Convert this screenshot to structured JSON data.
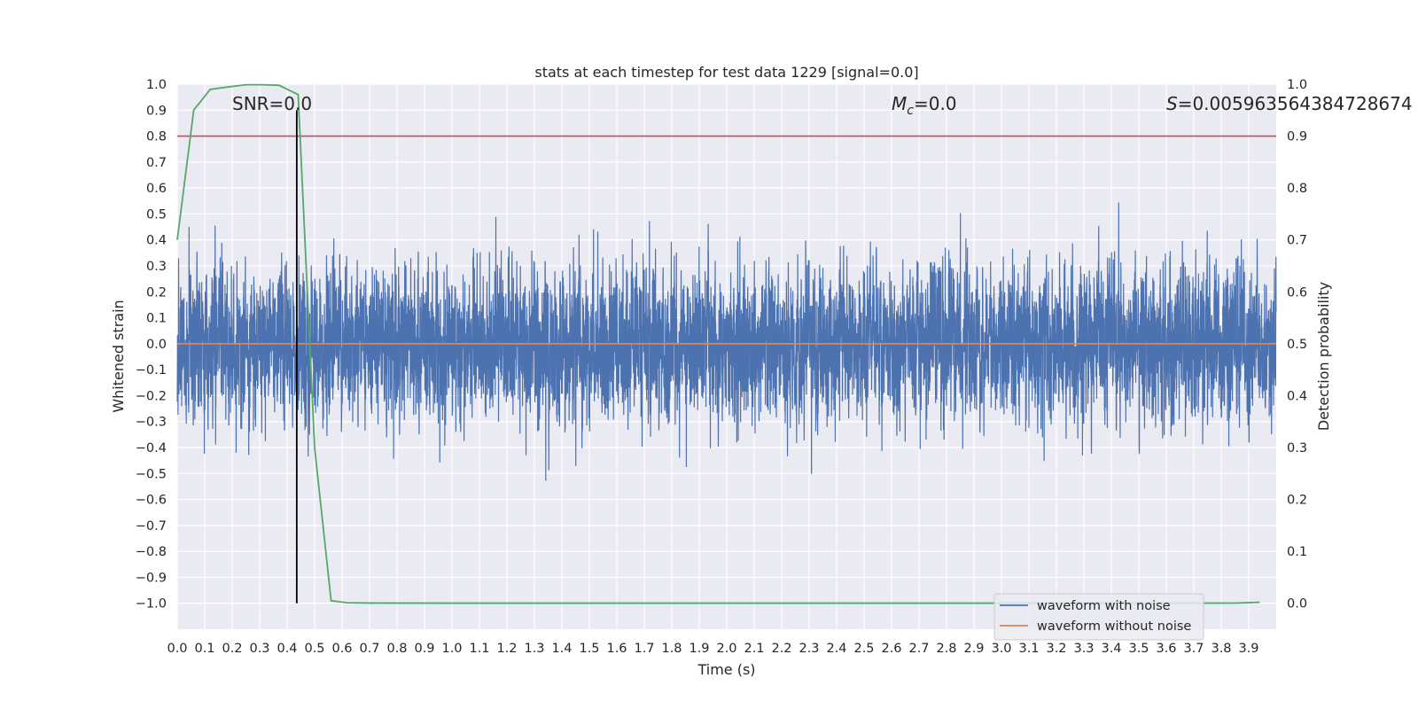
{
  "chart_data": {
    "type": "line",
    "title": "stats at each timestep for test data 1229 [signal=0.0]",
    "xlabel": "Time (s)",
    "ylabel": "Whitened strain",
    "y2label": "Detection probability",
    "xlim": [
      0.0,
      4.0
    ],
    "ylim": [
      -1.1,
      1.0
    ],
    "y2lim": [
      -0.05,
      1.0
    ],
    "xticks": [
      "0.0",
      "0.1",
      "0.2",
      "0.3",
      "0.4",
      "0.5",
      "0.6",
      "0.7",
      "0.8",
      "0.9",
      "1.0",
      "1.1",
      "1.2",
      "1.3",
      "1.4",
      "1.5",
      "1.6",
      "1.7",
      "1.8",
      "1.9",
      "2.0",
      "2.1",
      "2.2",
      "2.3",
      "2.4",
      "2.5",
      "2.6",
      "2.7",
      "2.8",
      "2.9",
      "3.0",
      "3.1",
      "3.2",
      "3.3",
      "3.4",
      "3.5",
      "3.6",
      "3.7",
      "3.8",
      "3.9"
    ],
    "yticks": [
      "1.0",
      "0.9",
      "0.8",
      "0.7",
      "0.6",
      "0.5",
      "0.4",
      "0.3",
      "0.2",
      "0.1",
      "0.0",
      "−0.1",
      "−0.2",
      "−0.3",
      "−0.4",
      "−0.5",
      "−0.6",
      "−0.7",
      "−0.8",
      "−0.9",
      "−1.0"
    ],
    "y2ticks": [
      "1.0",
      "0.9",
      "0.8",
      "0.7",
      "0.6",
      "0.5",
      "0.4",
      "0.3",
      "0.2",
      "0.1",
      "0.0"
    ],
    "grid": true,
    "legend_placement": "lower-right",
    "annotations": {
      "snr": "SNR=0.0",
      "mc_symbol": "M",
      "mc_subscript": "c",
      "mc_value": "=0.0",
      "s_symbol": "S",
      "s_value": "=0.005963564384728674"
    },
    "threshold_line": {
      "axis": "y2",
      "value": 0.9,
      "color": "#c44e52"
    },
    "vertical_marker": {
      "x": 0.435,
      "y_from": -1.0,
      "y_to": 0.9,
      "color": "#000000"
    },
    "series": [
      {
        "name": "waveform with noise",
        "axis": "y",
        "color": "#4c72b0",
        "kind": "noise",
        "sample_rate_hz": 2048,
        "amplitude_range": [
          -1.0,
          0.9
        ],
        "typical_envelope": 0.5
      },
      {
        "name": "waveform without noise",
        "axis": "y",
        "color": "#dd8452",
        "kind": "constant",
        "value": 0.0
      },
      {
        "name": "",
        "axis": "y2",
        "color": "#55a868",
        "kind": "line",
        "x": [
          0.0,
          0.06,
          0.12,
          0.19,
          0.25,
          0.31,
          0.37,
          0.44,
          0.5,
          0.56,
          0.62,
          0.7,
          1.0,
          1.5,
          2.0,
          2.5,
          3.0,
          3.5,
          3.85,
          3.94
        ],
        "y": [
          0.7,
          0.95,
          0.99,
          0.995,
          0.999,
          0.999,
          0.998,
          0.98,
          0.3,
          0.005,
          0.001,
          0.0005,
          0.0003,
          0.0003,
          0.0003,
          0.0003,
          0.0003,
          0.0003,
          0.0004,
          0.002
        ]
      }
    ]
  }
}
